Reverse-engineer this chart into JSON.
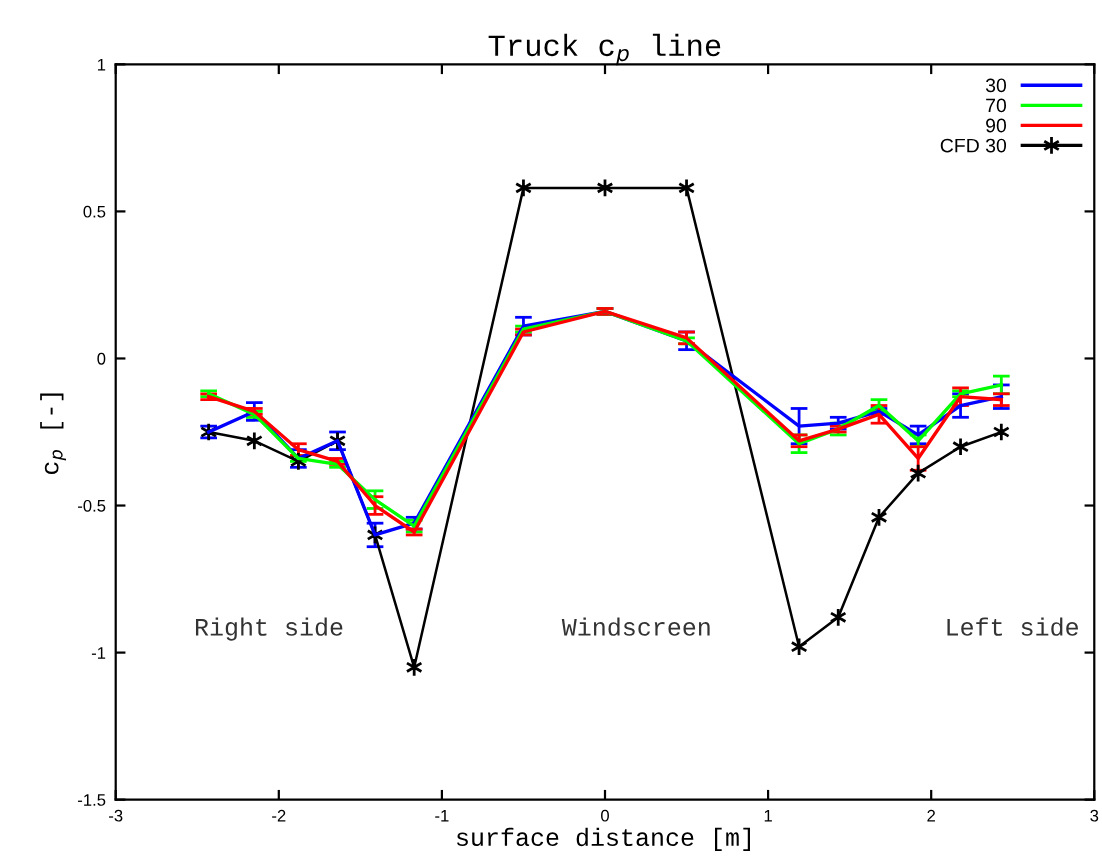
{
  "chart_data": {
    "type": "line",
    "title": "Truck c$_{p}$ line",
    "xlabel": "surface distance [m]",
    "ylabel": "c$_{p}$ [-]",
    "x": [
      -2.43,
      -2.15,
      -1.88,
      -1.64,
      -1.41,
      -1.17,
      -0.5,
      0,
      0.5,
      1.19,
      1.43,
      1.68,
      1.92,
      2.18,
      2.43
    ],
    "series": [
      {
        "name": "30",
        "color": "#0000ff",
        "marker": "none",
        "values": [
          -0.25,
          -0.18,
          -0.34,
          -0.28,
          -0.6,
          -0.56,
          0.11,
          0.16,
          0.06,
          -0.23,
          -0.22,
          -0.18,
          -0.26,
          -0.16,
          -0.13
        ],
        "errors": [
          0.02,
          0.03,
          0.03,
          0.03,
          0.04,
          0.02,
          0.03,
          0.01,
          0.03,
          0.06,
          0.02,
          0.01,
          0.03,
          0.04,
          0.04
        ]
      },
      {
        "name": "70",
        "color": "#00ff00",
        "marker": "none",
        "values": [
          -0.12,
          -0.19,
          -0.34,
          -0.36,
          -0.48,
          -0.57,
          0.1,
          0.16,
          0.06,
          -0.29,
          -0.24,
          -0.16,
          -0.28,
          -0.12,
          -0.09
        ],
        "errors": [
          0.01,
          0.01,
          0.01,
          0.01,
          0.03,
          0.02,
          0.01,
          0.01,
          0.01,
          0.03,
          0.02,
          0.02,
          0.02,
          0.01,
          0.03
        ]
      },
      {
        "name": "90",
        "color": "#ff0000",
        "marker": "none",
        "values": [
          -0.13,
          -0.18,
          -0.31,
          -0.35,
          -0.5,
          -0.59,
          0.09,
          0.16,
          0.07,
          -0.28,
          -0.24,
          -0.19,
          -0.34,
          -0.13,
          -0.14
        ],
        "errors": [
          0.01,
          0.01,
          0.02,
          0.01,
          0.03,
          0.01,
          0.01,
          0.01,
          0.02,
          0.02,
          0.01,
          0.03,
          0.04,
          0.03,
          0.02
        ]
      },
      {
        "name": "CFD 30",
        "color": "#000000",
        "marker": "cross",
        "values": [
          -0.25,
          -0.28,
          -0.35,
          -0.28,
          -0.6,
          -1.05,
          0.58,
          0.58,
          0.58,
          -0.98,
          -0.88,
          -0.54,
          -0.39,
          -0.3,
          -0.25
        ]
      }
    ],
    "annotations": [
      "Right side",
      "Windscreen",
      "Left side"
    ],
    "xlim": [
      -3,
      3
    ],
    "ylim": [
      -1.5,
      1
    ],
    "xticks": [
      -3,
      -2,
      -1,
      0,
      1,
      2,
      3
    ],
    "yticks": [
      -1.5,
      -1,
      -0.5,
      0,
      0.5,
      1
    ],
    "grid": false,
    "legend": "top right",
    "line_style": "solid"
  }
}
